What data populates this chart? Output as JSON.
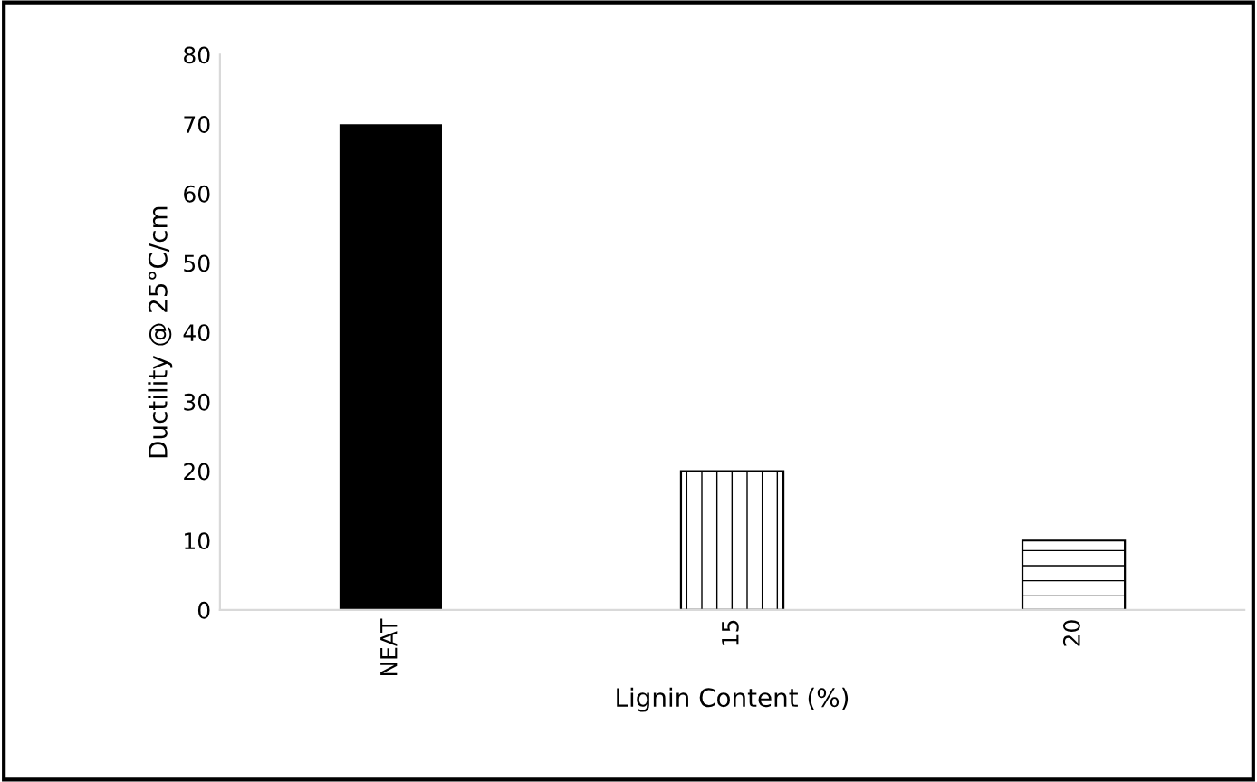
{
  "chart_data": {
    "type": "bar",
    "xlabel": "Lignin Content (%)",
    "ylabel": "Ductility @ 25°C/cm",
    "categories": [
      "NEAT",
      "15",
      "20"
    ],
    "values": [
      70,
      20,
      10
    ],
    "colors": [
      "#000000",
      "#ffffff",
      "#ffffff"
    ],
    "ylim": [
      0,
      80
    ],
    "yticks": [
      0,
      10,
      20,
      30,
      40,
      50,
      60,
      70,
      80
    ],
    "grid": false,
    "legend": false
  }
}
